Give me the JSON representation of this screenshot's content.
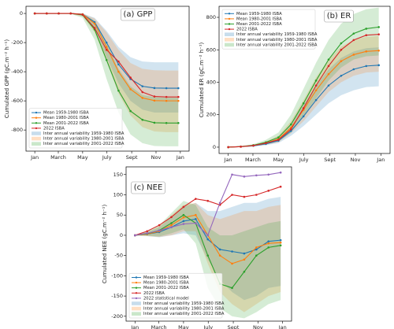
{
  "chart_data": [
    {
      "type": "line",
      "title": "(a) GPP",
      "y_label": "Cumulated GPP (gC.m⁻² h⁻¹)",
      "legend": "lower left",
      "x": [
        0,
        30,
        60,
        90,
        120,
        150,
        180,
        210,
        240,
        270,
        300,
        330,
        360
      ],
      "xlim": [
        -22,
        387
      ],
      "xticks": [
        {
          "value": 0,
          "label": "Jan"
        },
        {
          "value": 59,
          "label": "March"
        },
        {
          "value": 120,
          "label": "May"
        },
        {
          "value": 181,
          "label": "July"
        },
        {
          "value": 243,
          "label": "Sept"
        },
        {
          "value": 304,
          "label": "Nov"
        },
        {
          "value": 365,
          "label": "Jan"
        }
      ],
      "ylim": [
        -945,
        49
      ],
      "yticks": [
        -800,
        -600,
        -400,
        -200,
        0
      ],
      "series": [
        {
          "name": "Mean 1959-1980 ISBA",
          "color": "#1f77b4",
          "values": [
            0,
            0,
            0,
            0,
            -5,
            -60,
            -200,
            -350,
            -450,
            -500,
            -512,
            -513,
            -513
          ]
        },
        {
          "name": "Mean 1980-2001 ISBA",
          "color": "#ff7f0e",
          "values": [
            0,
            0,
            0,
            0,
            -6,
            -70,
            -230,
            -400,
            -520,
            -580,
            -598,
            -600,
            -600
          ]
        },
        {
          "name": "Mean 2001-2022 ISBA",
          "color": "#2ca02c",
          "values": [
            0,
            0,
            0,
            0,
            -10,
            -110,
            -320,
            -530,
            -670,
            -730,
            -750,
            -752,
            -752
          ]
        },
        {
          "name": "2022 ISBA",
          "color": "#d62728",
          "values": [
            0,
            0,
            0,
            0,
            -8,
            -100,
            -250,
            -330,
            -440,
            -540,
            -570,
            -573,
            -573
          ]
        }
      ],
      "bands": [
        {
          "name": "Inter annual variability 1959-1980 ISBA",
          "color": "#1f77b4",
          "upper": [
            0,
            0,
            0,
            0,
            0,
            -30,
            -120,
            -230,
            -300,
            -330,
            -335,
            -335,
            -335
          ],
          "lower": [
            0,
            0,
            0,
            -2,
            -15,
            -110,
            -300,
            -480,
            -600,
            -660,
            -680,
            -680,
            -680
          ]
        },
        {
          "name": "Inter annual variability 1980-2001 ISBA",
          "color": "#ff7f0e",
          "upper": [
            0,
            0,
            0,
            0,
            0,
            -35,
            -130,
            -250,
            -340,
            -380,
            -390,
            -392,
            -392
          ],
          "lower": [
            0,
            0,
            0,
            -2,
            -20,
            -130,
            -330,
            -550,
            -700,
            -780,
            -810,
            -815,
            -815
          ]
        },
        {
          "name": "Inter annual variability 2001-2022 ISBA",
          "color": "#2ca02c",
          "upper": [
            0,
            0,
            0,
            0,
            -2,
            -50,
            -200,
            -380,
            -500,
            -560,
            -575,
            -578,
            -578
          ],
          "lower": [
            0,
            0,
            0,
            -3,
            -30,
            -180,
            -450,
            -680,
            -830,
            -890,
            -910,
            -912,
            -912
          ]
        }
      ]
    },
    {
      "type": "line",
      "title": "(b) ER",
      "y_label": "Cumulated ER (gC.m⁻² h⁻¹)",
      "legend": "upper left",
      "x": [
        0,
        30,
        60,
        90,
        120,
        150,
        180,
        210,
        240,
        270,
        300,
        330,
        360
      ],
      "xlim": [
        -22,
        387
      ],
      "xticks": [
        {
          "value": 0,
          "label": "Jan"
        },
        {
          "value": 59,
          "label": "March"
        },
        {
          "value": 120,
          "label": "May"
        },
        {
          "value": 181,
          "label": "July"
        },
        {
          "value": 243,
          "label": "Sept"
        },
        {
          "value": 304,
          "label": "Nov"
        },
        {
          "value": 365,
          "label": "Jan"
        }
      ],
      "ylim": [
        -39,
        868
      ],
      "yticks": [
        0,
        200,
        400,
        600,
        800
      ],
      "series": [
        {
          "name": "Mean 1959-1980 ISBA",
          "color": "#1f77b4",
          "values": [
            0,
            3,
            8,
            20,
            40,
            100,
            190,
            290,
            380,
            440,
            480,
            500,
            505
          ]
        },
        {
          "name": "Mean 1980-2001 ISBA",
          "color": "#ff7f0e",
          "values": [
            0,
            3,
            10,
            25,
            50,
            120,
            230,
            350,
            450,
            530,
            570,
            590,
            595
          ]
        },
        {
          "name": "Mean 2001-2022 ISBA",
          "color": "#2ca02c",
          "values": [
            0,
            4,
            12,
            30,
            60,
            140,
            270,
            410,
            540,
            640,
            700,
            730,
            740
          ]
        },
        {
          "name": "2022 ISBA",
          "color": "#d62728",
          "values": [
            0,
            3,
            10,
            25,
            45,
            110,
            240,
            380,
            500,
            600,
            660,
            690,
            695
          ]
        }
      ],
      "bands": [
        {
          "name": "Inter annual variability 1959-1980 ISBA",
          "color": "#1f77b4",
          "upper": [
            0,
            5,
            12,
            30,
            60,
            140,
            260,
            380,
            480,
            550,
            590,
            610,
            615
          ],
          "lower": [
            0,
            1,
            4,
            12,
            25,
            70,
            130,
            200,
            270,
            320,
            350,
            370,
            375
          ]
        },
        {
          "name": "Inter annual variability 1980-2001 ISBA",
          "color": "#ff7f0e",
          "upper": [
            0,
            5,
            14,
            35,
            70,
            160,
            290,
            430,
            540,
            620,
            660,
            680,
            685
          ],
          "lower": [
            0,
            1,
            5,
            15,
            30,
            85,
            160,
            250,
            340,
            400,
            440,
            460,
            465
          ]
        },
        {
          "name": "Inter annual variability 2001-2022 ISBA",
          "color": "#2ca02c",
          "upper": [
            0,
            6,
            18,
            45,
            90,
            200,
            360,
            520,
            660,
            760,
            820,
            850,
            860
          ],
          "lower": [
            0,
            2,
            7,
            18,
            35,
            90,
            190,
            300,
            410,
            490,
            540,
            560,
            565
          ]
        }
      ]
    },
    {
      "type": "line",
      "title": "(c) NEE",
      "y_label": "Cumulated NEE (gC.m⁻² h⁻¹)",
      "legend": "lower left",
      "x": [
        0,
        30,
        60,
        90,
        120,
        150,
        180,
        210,
        240,
        270,
        300,
        330,
        360
      ],
      "xlim": [
        -22,
        387
      ],
      "xticks": [
        {
          "value": 0,
          "label": "Jan"
        },
        {
          "value": 59,
          "label": "March"
        },
        {
          "value": 120,
          "label": "May"
        },
        {
          "value": 181,
          "label": "July"
        },
        {
          "value": 243,
          "label": "Sept"
        },
        {
          "value": 304,
          "label": "Nov"
        },
        {
          "value": 365,
          "label": "Jan"
        }
      ],
      "ylim": [
        -212,
        169
      ],
      "yticks": [
        -200,
        -150,
        -100,
        -50,
        0,
        50,
        100,
        150
      ],
      "series": [
        {
          "name": "Mean 1959-1980 ISBA",
          "color": "#1f77b4",
          "values": [
            0,
            3,
            8,
            20,
            35,
            40,
            -10,
            -35,
            -40,
            -45,
            -35,
            -15,
            -12
          ]
        },
        {
          "name": "Mean 1980-2001 ISBA",
          "color": "#ff7f0e",
          "values": [
            0,
            3,
            10,
            25,
            44,
            50,
            0,
            -50,
            -70,
            -60,
            -30,
            -20,
            -18
          ]
        },
        {
          "name": "Mean 2001-2022 ISBA",
          "color": "#2ca02c",
          "values": [
            0,
            4,
            12,
            30,
            50,
            30,
            -50,
            -120,
            -130,
            -90,
            -50,
            -30,
            -25
          ]
        },
        {
          "name": "2022 ISBA",
          "color": "#d62728",
          "values": [
            0,
            10,
            25,
            45,
            70,
            90,
            85,
            75,
            100,
            95,
            100,
            110,
            120
          ]
        },
        {
          "name": "2022 statistical model",
          "color": "#9467bd",
          "values": [
            0,
            5,
            12,
            20,
            28,
            30,
            0,
            80,
            150,
            145,
            148,
            150,
            155
          ]
        }
      ],
      "bands": [
        {
          "name": "Inter annual variability 1959-1980 ISBA",
          "color": "#1f77b4",
          "upper": [
            0,
            8,
            20,
            45,
            70,
            80,
            60,
            60,
            70,
            80,
            80,
            90,
            95
          ],
          "lower": [
            0,
            -2,
            -5,
            0,
            5,
            0,
            -60,
            -110,
            -140,
            -160,
            -150,
            -130,
            -125
          ]
        },
        {
          "name": "Inter annual variability 1980-2001 ISBA",
          "color": "#ff7f0e",
          "upper": [
            0,
            8,
            22,
            50,
            75,
            80,
            50,
            40,
            50,
            60,
            60,
            70,
            75
          ],
          "lower": [
            0,
            -2,
            -4,
            0,
            10,
            10,
            -70,
            -140,
            -170,
            -190,
            -170,
            -150,
            -140
          ]
        },
        {
          "name": "Inter annual variability 2001-2022 ISBA",
          "color": "#2ca02c",
          "upper": [
            0,
            9,
            25,
            55,
            85,
            75,
            20,
            0,
            0,
            10,
            20,
            30,
            35
          ],
          "lower": [
            0,
            -1,
            -3,
            5,
            15,
            -20,
            -130,
            -180,
            -200,
            -205,
            -190,
            -170,
            -160
          ]
        }
      ]
    }
  ]
}
